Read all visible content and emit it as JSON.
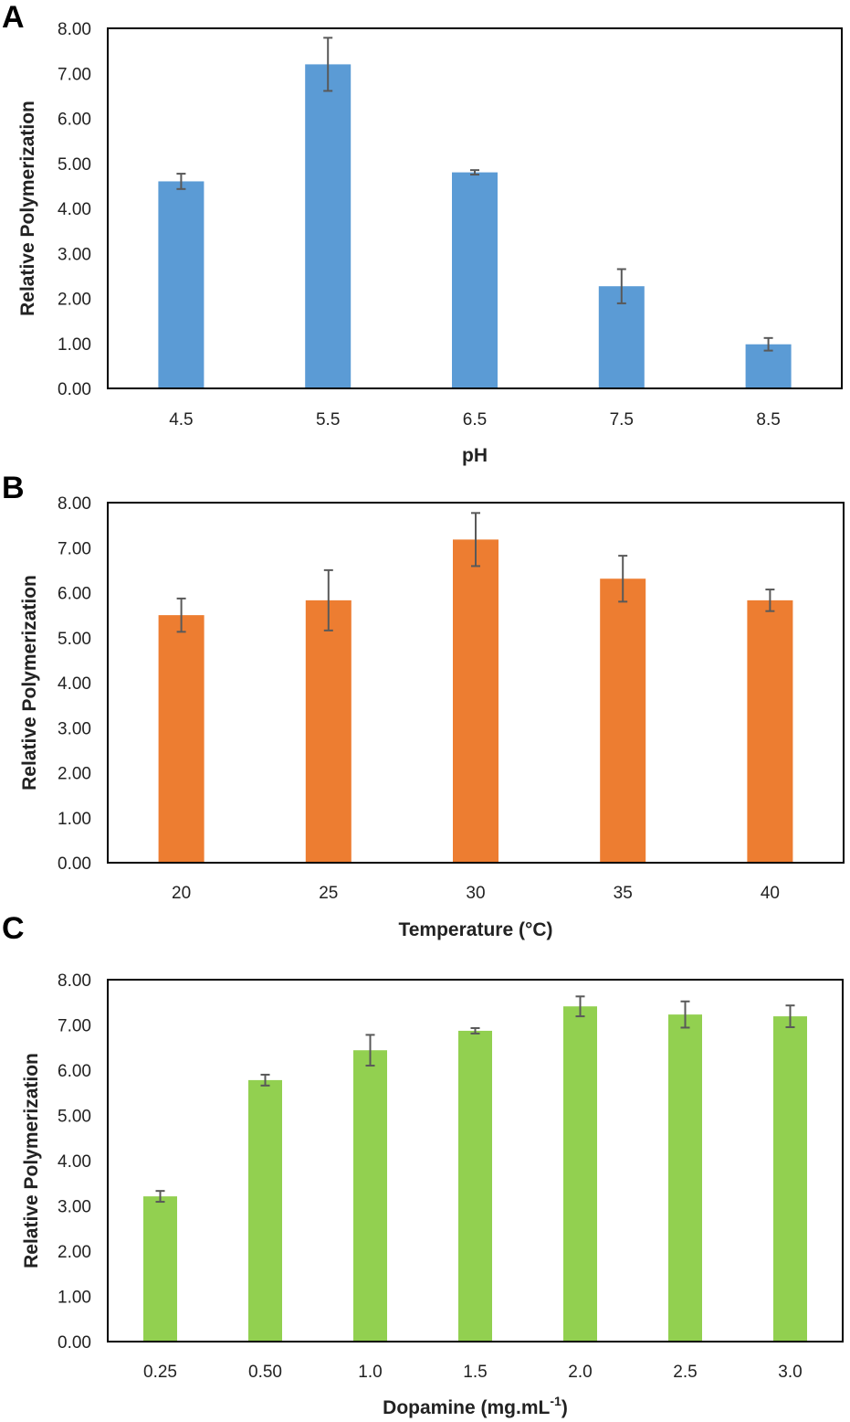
{
  "chart_data": [
    {
      "type": "bar",
      "panel_label": "A",
      "xlabel": "pH",
      "ylabel": "Relative Polymerization",
      "ylim": [
        0,
        8
      ],
      "yticks": [
        "0.00",
        "1.00",
        "2.00",
        "3.00",
        "4.00",
        "5.00",
        "6.00",
        "7.00",
        "8.00"
      ],
      "categories": [
        "4.5",
        "5.5",
        "6.5",
        "7.5",
        "8.5"
      ],
      "values": [
        4.6,
        7.2,
        4.8,
        2.27,
        0.98
      ],
      "errors": [
        0.17,
        0.59,
        0.05,
        0.38,
        0.14
      ],
      "color": "#5B9BD5",
      "grid": false
    },
    {
      "type": "bar",
      "panel_label": "B",
      "xlabel": "Temperature (°C)",
      "ylabel": "Relative Polymerization",
      "ylim": [
        0,
        8
      ],
      "yticks": [
        "0.00",
        "1.00",
        "2.00",
        "3.00",
        "4.00",
        "5.00",
        "6.00",
        "7.00",
        "8.00"
      ],
      "categories": [
        "20",
        "25",
        "30",
        "35",
        "40"
      ],
      "values": [
        5.5,
        5.83,
        7.18,
        6.31,
        5.83
      ],
      "errors": [
        0.37,
        0.67,
        0.59,
        0.51,
        0.24
      ],
      "color": "#ED7D31",
      "grid": false
    },
    {
      "type": "bar",
      "panel_label": "C",
      "xlabel": "Dopamine (mg.mL",
      "xlabel_sup": "-1",
      "xlabel_end": ")",
      "ylabel": "Relative Polymerization",
      "ylim": [
        0,
        8
      ],
      "yticks": [
        "0.00",
        "1.00",
        "2.00",
        "3.00",
        "4.00",
        "5.00",
        "6.00",
        "7.00",
        "8.00"
      ],
      "categories": [
        "0.25",
        "0.50",
        "1.0",
        "1.5",
        "2.0",
        "2.5",
        "3.0"
      ],
      "values": [
        3.21,
        5.78,
        6.44,
        6.87,
        7.41,
        7.23,
        7.19
      ],
      "errors": [
        0.12,
        0.12,
        0.34,
        0.06,
        0.22,
        0.29,
        0.24
      ],
      "color": "#92D050",
      "grid": false
    }
  ]
}
